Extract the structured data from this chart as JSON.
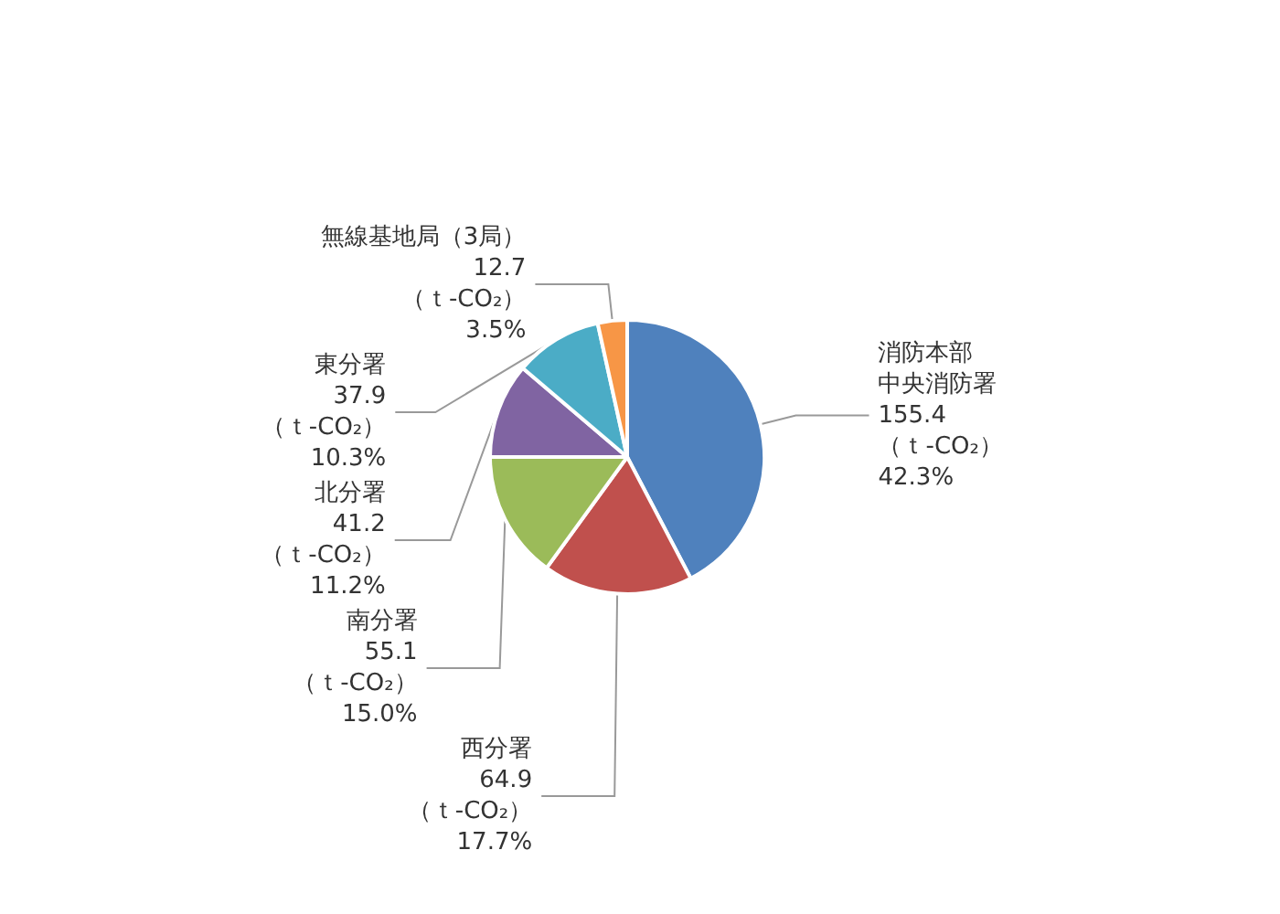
{
  "chart_data": {
    "type": "pie",
    "categories": [
      "消防本部中央消防署",
      "西分署",
      "南分署",
      "北分署",
      "東分署",
      "無線基地局（3局）"
    ],
    "values": [
      155.4,
      64.9,
      55.1,
      41.2,
      37.9,
      12.7
    ],
    "value_labels": [
      "155.4\n（ｔ-CO₂）\n42.3%",
      "64.9\n（ｔ-CO₂）\n17.7%",
      "55.1\n（ｔ-CO₂）\n15.0%",
      "41.2\n（ｔ-CO₂）\n11.2%",
      "37.9\n（ｔ-CO₂）\n10.3%",
      "12.7\n（ｔ-CO₂）\n3.5%"
    ],
    "colors": [
      "#4f81bd",
      "#c0504d",
      "#9bbb59",
      "#8064a2",
      "#4bacc6",
      "#f79646"
    ],
    "legend": false
  }
}
